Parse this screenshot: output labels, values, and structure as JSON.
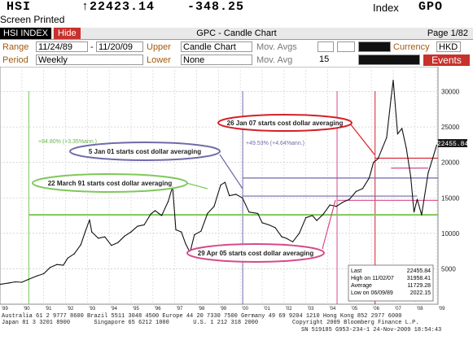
{
  "header": {
    "ticker": "HSI",
    "price": "↑22423.14",
    "change": "-348.25",
    "index_label": "Index",
    "index_code": "GPO",
    "screen_printed": "Screen Printed"
  },
  "titlebar": {
    "security": "HSI INDEX",
    "hide_label": "Hide",
    "title": "GPC - Candle Chart",
    "page": "Page 1/82"
  },
  "controls": {
    "range_label": "Range",
    "start_date": "11/24/89",
    "range_sep": "-",
    "end_date": "11/20/09",
    "upper_label": "Upper",
    "upper_value": "Candle Chart",
    "mov_avgs_label": "Mov. Avgs",
    "currency_label": "Currency",
    "currency_value": "HKD",
    "period_label": "Period",
    "period_value": "Weekly",
    "lower_label": "Lower",
    "lower_value": "None",
    "mov_avg_label": "Mov. Avg",
    "mov_avg_value": "15",
    "events_label": "Events"
  },
  "colors": {
    "accent_orange": "#a25a10",
    "green": "#7ec85a",
    "purple": "#6f6aa8",
    "pink": "#d64a8a",
    "red": "#d4202a",
    "blue": "#6a8fd0"
  },
  "chart_data": {
    "type": "line",
    "x_tick_labels": [
      "'89",
      "'90",
      "'91",
      "'92",
      "'93",
      "'94",
      "'95",
      "'96",
      "'97",
      "'98",
      "'99",
      "'00",
      "'01",
      "'02",
      "'03",
      "'04",
      "'05",
      "'06",
      "'07",
      "'08",
      "'09"
    ],
    "y_ticks": [
      5000,
      10000,
      15000,
      20000,
      25000,
      30000
    ],
    "y_tick_labels": [
      "5000",
      "10000",
      "15000",
      "20000",
      "25000",
      "30000"
    ],
    "ylim": [
      0,
      33500
    ],
    "xlim": [
      1989.9,
      2009.95
    ],
    "series": [
      {
        "x": [
          1989.9,
          1990.3,
          1990.6,
          1990.9,
          1991.2,
          1991.6,
          1991.9,
          1992.2,
          1992.5,
          1992.8,
          1993.0,
          1993.3,
          1993.6,
          1993.8,
          1994.0,
          1994.1,
          1994.4,
          1994.7,
          1995.0,
          1995.3,
          1995.6,
          1995.9,
          1996.2,
          1996.5,
          1996.8,
          1997.0,
          1997.3,
          1997.6,
          1997.8,
          1997.95,
          1998.2,
          1998.4,
          1998.6,
          1998.8,
          1999.1,
          1999.4,
          1999.7,
          2000.0,
          2000.2,
          2000.4,
          2000.7,
          2001.0,
          2001.3,
          2001.7,
          2001.9,
          2002.2,
          2002.5,
          2002.8,
          2003.0,
          2003.3,
          2003.6,
          2003.9,
          2004.2,
          2004.4,
          2004.7,
          2005.0,
          2005.3,
          2005.6,
          2005.9,
          2006.2,
          2006.5,
          2006.8,
          2007.0,
          2007.2,
          2007.4,
          2007.6,
          2007.8,
          2007.9,
          2008.1,
          2008.3,
          2008.5,
          2008.7,
          2008.85,
          2009.0,
          2009.2,
          2009.5,
          2009.7,
          2009.89
        ],
        "y": [
          2800,
          3000,
          3150,
          3100,
          3500,
          4000,
          4300,
          5200,
          5600,
          5500,
          6500,
          7100,
          8400,
          10200,
          11900,
          10200,
          9300,
          9500,
          8300,
          8700,
          9600,
          10200,
          11000,
          11200,
          12700,
          13200,
          12500,
          14500,
          16600,
          10500,
          10200,
          8500,
          7300,
          9800,
          10300,
          12800,
          13800,
          16800,
          17200,
          15300,
          15500,
          15000,
          13000,
          12800,
          11500,
          11200,
          10800,
          9500,
          9300,
          8800,
          10000,
          12200,
          12500,
          11800,
          12700,
          14000,
          13800,
          14400,
          14800,
          15900,
          16300,
          17800,
          20000,
          20500,
          22000,
          23500,
          29000,
          31600,
          24000,
          24800,
          22000,
          18000,
          13000,
          14800,
          12600,
          18500,
          20500,
          22455
        ]
      }
    ],
    "legend_box": {
      "last_label": "Last",
      "last_value": "22455.84",
      "high_label": "High on 11/02/07",
      "high_value": "31958.41",
      "average_label": "Average",
      "average_value": "11729.28",
      "low_label": "Low on 06/09/89",
      "low_value": "2022.15"
    },
    "current_value_label": "22455.84",
    "annotations": [
      {
        "text": "22 March 91 starts cost dollar averaging",
        "color": "#7ec85a"
      },
      {
        "text": "5 Jan 01 starts cost dollar averaging",
        "color": "#6f6aa8"
      },
      {
        "text": "29 Apr 05 starts cost dollar averaging",
        "color": "#d64a8a"
      },
      {
        "text": "26 Jan 07 starts cost dollar averaging",
        "color": "#d4202a"
      }
    ],
    "return_labels": [
      {
        "text": "+84.80% (+3.35%ann.)"
      },
      {
        "text": "+49.53% (+4.64%ann.)"
      }
    ],
    "horizontal_levels": [
      {
        "y": 12600,
        "color": "#7ec85a"
      },
      {
        "y": 15250,
        "color": "#6f6aa8"
      },
      {
        "y": 14650,
        "color": "#d64a8a"
      },
      {
        "y": 20600,
        "color": "#d4202a"
      },
      {
        "y": 19200,
        "color": "#d64a8a"
      },
      {
        "y": 17800,
        "color": "#6f6aa8"
      }
    ]
  },
  "footer": {
    "line1": "Australia 61 2 9777 8600 Brazil 5511 3048 4500 Europe 44 20 7330 7500 Germany 49 69 9204 1210 Hong Kong 852 2977 6000",
    "line2": "Japan 81 3 3201 8900       Singapore 65 6212 1000       U.S. 1 212 318 2000          Copyright 2009 Bloomberg Finance L.P.",
    "line3": "SN 519185 G953-234-1 24-Nov-2009 18:54:43"
  }
}
